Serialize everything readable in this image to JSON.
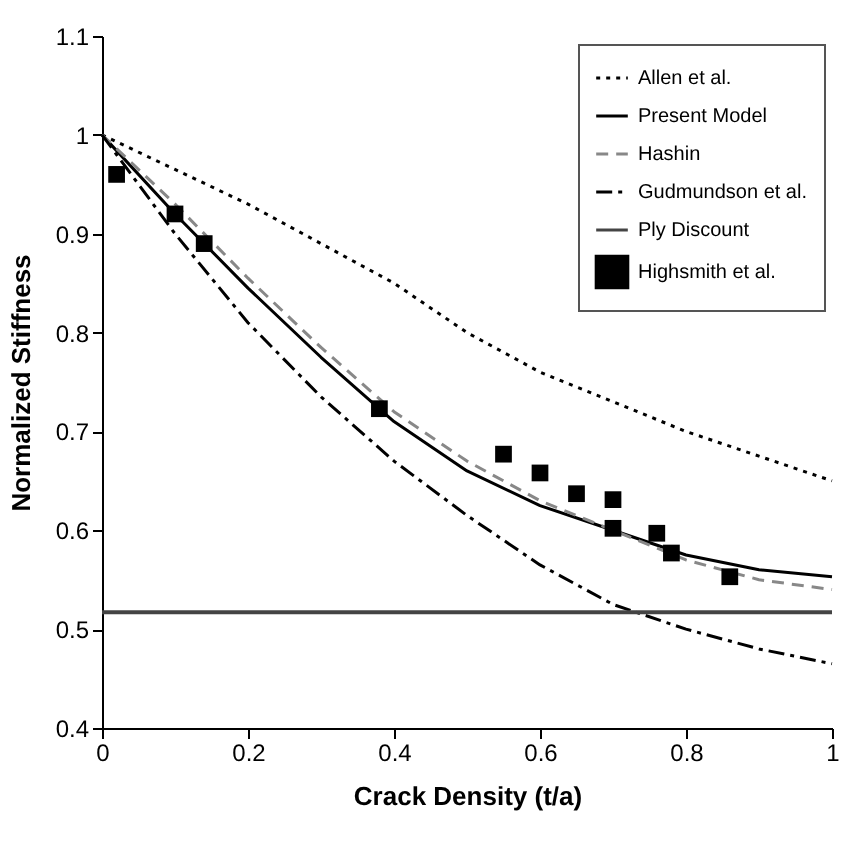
{
  "chart_data": {
    "type": "line",
    "xlabel": "Crack Density (t/a)",
    "ylabel": "Normalized Stiffness",
    "xlim": [
      0,
      1
    ],
    "xticks": [
      0,
      0.2,
      0.4,
      0.6,
      0.8,
      1
    ],
    "ylim": [
      0.4,
      1.1
    ],
    "yticks": [
      0.4,
      0.5,
      0.6,
      0.7,
      0.8,
      0.9,
      1,
      1.1
    ],
    "grid": false,
    "legend": "top right",
    "series": [
      {
        "name": "Allen et al.",
        "line_style": "dotted",
        "color": "#000000",
        "x": [
          0,
          0.1,
          0.2,
          0.3,
          0.4,
          0.5,
          0.6,
          0.7,
          0.8,
          0.9,
          1
        ],
        "values": [
          1,
          0.965,
          0.93,
          0.89,
          0.85,
          0.8,
          0.76,
          0.73,
          0.7,
          0.675,
          0.65
        ]
      },
      {
        "name": "Present Model",
        "line_style": "solid",
        "color": "#000000",
        "x": [
          0,
          0.1,
          0.2,
          0.3,
          0.4,
          0.5,
          0.6,
          0.7,
          0.8,
          0.9,
          1
        ],
        "values": [
          1,
          0.92,
          0.845,
          0.775,
          0.71,
          0.66,
          0.625,
          0.6,
          0.575,
          0.56,
          0.553
        ]
      },
      {
        "name": "Hashin",
        "line_style": "dashed",
        "color": "#888888",
        "x": [
          0,
          0.1,
          0.2,
          0.3,
          0.4,
          0.5,
          0.6,
          0.7,
          0.8,
          0.9,
          1
        ],
        "values": [
          1,
          0.93,
          0.855,
          0.785,
          0.72,
          0.67,
          0.63,
          0.6,
          0.57,
          0.55,
          0.54
        ]
      },
      {
        "name": "Gudmundson et al.",
        "line_style": "dashdot",
        "color": "#000000",
        "x": [
          0,
          0.1,
          0.2,
          0.3,
          0.4,
          0.5,
          0.6,
          0.7,
          0.8,
          0.9,
          1
        ],
        "values": [
          1,
          0.9,
          0.81,
          0.735,
          0.67,
          0.615,
          0.565,
          0.525,
          0.5,
          0.48,
          0.465
        ]
      },
      {
        "name": "Ply Discount",
        "line_style": "solid",
        "color": "#444444",
        "x": [
          0,
          1
        ],
        "values": [
          0.517,
          0.517
        ]
      },
      {
        "name": "Highsmith et al.",
        "type": "scatter",
        "marker": "square",
        "color": "#000000",
        "x": [
          0.02,
          0.1,
          0.14,
          0.38,
          0.55,
          0.6,
          0.65,
          0.7,
          0.7,
          0.76,
          0.78,
          0.86
        ],
        "values": [
          0.96,
          0.92,
          0.89,
          0.723,
          0.677,
          0.658,
          0.637,
          0.631,
          0.602,
          0.597,
          0.577,
          0.553
        ]
      }
    ]
  }
}
